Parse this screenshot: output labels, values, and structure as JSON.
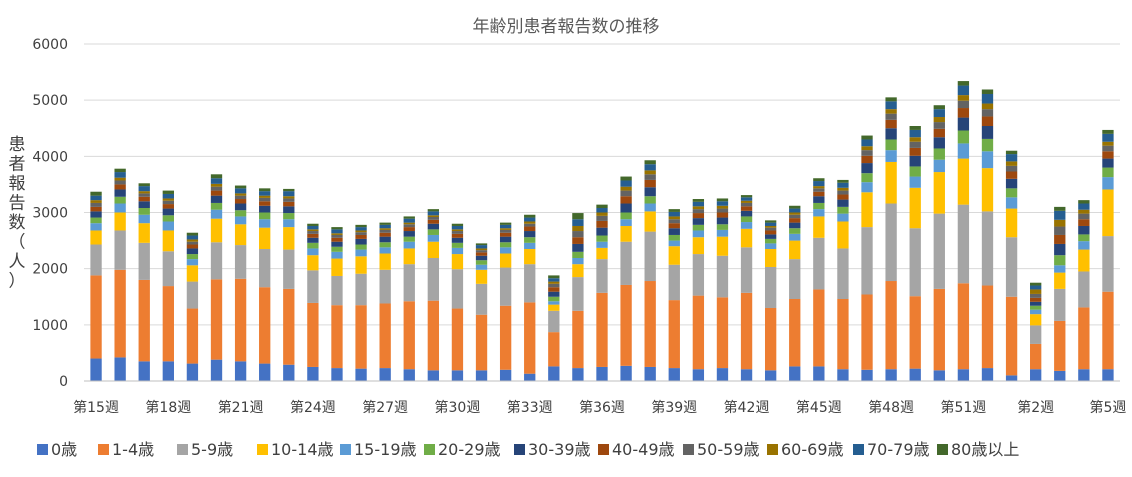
{
  "chart_data": {
    "type": "bar",
    "stacked": true,
    "title": "年齢別患者報告数の推移",
    "ylabel": "患者報告数（人）",
    "xlabel": "",
    "ylim": [
      0,
      6000
    ],
    "yticks": [
      0,
      1000,
      2000,
      3000,
      4000,
      5000,
      6000
    ],
    "grid": true,
    "legend_position": "bottom",
    "categories": [
      "第15週",
      "第16週",
      "第17週",
      "第18週",
      "第19週",
      "第20週",
      "第21週",
      "第22週",
      "第23週",
      "第24週",
      "第25週",
      "第26週",
      "第27週",
      "第28週",
      "第29週",
      "第30週",
      "第31週",
      "第32週",
      "第33週",
      "第34週",
      "第35週",
      "第36週",
      "第37週",
      "第38週",
      "第39週",
      "第40週",
      "第41週",
      "第42週",
      "第43週",
      "第44週",
      "第45週",
      "第46週",
      "第47週",
      "第48週",
      "第49週",
      "第50週",
      "第51週",
      "第52週",
      "第1週",
      "第2週",
      "第3週",
      "第4週",
      "第5週"
    ],
    "shown_tick_labels": [
      "第15週",
      "第18週",
      "第21週",
      "第24週",
      "第27週",
      "第30週",
      "第33週",
      "第36週",
      "第39週",
      "第42週",
      "第45週",
      "第48週",
      "第51週",
      "第2週",
      "第5週"
    ],
    "series": [
      {
        "name": "0歳",
        "color": "#4472c4",
        "values": [
          400,
          420,
          350,
          350,
          310,
          380,
          350,
          310,
          290,
          250,
          230,
          220,
          230,
          210,
          190,
          190,
          190,
          200,
          130,
          260,
          230,
          250,
          270,
          250,
          230,
          210,
          230,
          210,
          190,
          260,
          260,
          210,
          200,
          210,
          220,
          190,
          210,
          230,
          100,
          210,
          180,
          210,
          210
        ]
      },
      {
        "name": "1-4歳",
        "color": "#ed7d31",
        "values": [
          1480,
          1560,
          1450,
          1340,
          980,
          1430,
          1470,
          1360,
          1350,
          1140,
          1120,
          1130,
          1150,
          1210,
          1240,
          1100,
          990,
          1140,
          1270,
          610,
          1020,
          1320,
          1440,
          1530,
          1210,
          1310,
          1260,
          1360,
          1110,
          1200,
          1370,
          1250,
          1340,
          1570,
          1290,
          1450,
          1530,
          1470,
          1400,
          450,
          890,
          1100,
          1380
        ]
      },
      {
        "name": "5-9歳",
        "color": "#a5a5a5",
        "values": [
          550,
          700,
          660,
          620,
          480,
          660,
          600,
          680,
          700,
          580,
          520,
          560,
          600,
          660,
          760,
          700,
          550,
          680,
          680,
          380,
          600,
          600,
          770,
          880,
          630,
          740,
          740,
          810,
          730,
          710,
          920,
          900,
          1200,
          1380,
          1210,
          1340,
          1400,
          1320,
          1060,
          330,
          570,
          640,
          990
        ]
      },
      {
        "name": "10-14歳",
        "color": "#ffc000",
        "values": [
          250,
          320,
          350,
          370,
          290,
          420,
          370,
          380,
          400,
          270,
          310,
          310,
          290,
          280,
          290,
          270,
          250,
          250,
          270,
          110,
          230,
          200,
          280,
          360,
          330,
          300,
          340,
          330,
          320,
          330,
          380,
          480,
          620,
          740,
          720,
          740,
          820,
          770,
          510,
          200,
          290,
          390,
          830
        ]
      },
      {
        "name": "15-19歳",
        "color": "#5b9bd5",
        "values": [
          130,
          160,
          150,
          160,
          110,
          160,
          140,
          150,
          140,
          120,
          120,
          120,
          110,
          120,
          120,
          110,
          90,
          110,
          110,
          60,
          110,
          110,
          120,
          140,
          100,
          120,
          120,
          120,
          100,
          120,
          130,
          140,
          180,
          210,
          200,
          220,
          270,
          300,
          200,
          80,
          130,
          150,
          220
        ]
      },
      {
        "name": "20-29歳",
        "color": "#70ad47",
        "values": [
          100,
          120,
          120,
          110,
          90,
          120,
          110,
          120,
          110,
          100,
          90,
          90,
          90,
          90,
          100,
          90,
          80,
          90,
          100,
          80,
          110,
          110,
          120,
          130,
          100,
          100,
          100,
          100,
          80,
          100,
          110,
          120,
          160,
          190,
          180,
          200,
          230,
          220,
          160,
          70,
          180,
          120,
          170
        ]
      },
      {
        "name": "30-39歳",
        "color": "#264478",
        "values": [
          110,
          130,
          120,
          120,
          100,
          130,
          120,
          120,
          120,
          90,
          90,
          100,
          100,
          100,
          100,
          90,
          80,
          100,
          110,
          90,
          140,
          140,
          160,
          160,
          120,
          120,
          120,
          100,
          80,
          100,
          120,
          130,
          180,
          200,
          190,
          200,
          230,
          230,
          170,
          70,
          200,
          150,
          160
        ]
      },
      {
        "name": "40-49歳",
        "color": "#9e480e",
        "values": [
          80,
          90,
          80,
          80,
          70,
          90,
          80,
          80,
          80,
          70,
          70,
          70,
          70,
          70,
          70,
          70,
          60,
          70,
          80,
          80,
          120,
          120,
          130,
          130,
          90,
          90,
          90,
          80,
          70,
          80,
          80,
          90,
          130,
          150,
          140,
          150,
          170,
          170,
          130,
          70,
          160,
          120,
          130
        ]
      },
      {
        "name": "50-59歳",
        "color": "#636363",
        "values": [
          70,
          70,
          60,
          60,
          50,
          70,
          60,
          60,
          60,
          50,
          50,
          50,
          50,
          50,
          50,
          50,
          40,
          50,
          50,
          60,
          110,
          90,
          100,
          100,
          70,
          70,
          70,
          60,
          50,
          60,
          60,
          70,
          100,
          110,
          110,
          120,
          130,
          130,
          100,
          70,
          150,
          100,
          100
        ]
      },
      {
        "name": "60-69歳",
        "color": "#997300",
        "values": [
          50,
          50,
          40,
          40,
          40,
          50,
          40,
          40,
          40,
          30,
          30,
          30,
          30,
          30,
          30,
          30,
          30,
          30,
          40,
          40,
          90,
          60,
          70,
          70,
          50,
          50,
          50,
          40,
          30,
          40,
          40,
          50,
          70,
          80,
          80,
          90,
          100,
          100,
          80,
          80,
          120,
          70,
          70
        ]
      },
      {
        "name": "70-79歳",
        "color": "#255e91",
        "values": [
          80,
          100,
          90,
          80,
          70,
          100,
          90,
          80,
          90,
          60,
          70,
          60,
          60,
          70,
          70,
          60,
          60,
          60,
          70,
          60,
          120,
          80,
          110,
          110,
          80,
          80,
          80,
          60,
          60,
          70,
          90,
          90,
          120,
          140,
          130,
          140,
          170,
          170,
          130,
          70,
          160,
          110,
          140
        ]
      },
      {
        "name": "80歳以上",
        "color": "#43682b",
        "values": [
          70,
          60,
          50,
          60,
          50,
          70,
          50,
          50,
          40,
          40,
          40,
          40,
          40,
          40,
          40,
          40,
          30,
          40,
          50,
          50,
          110,
          60,
          70,
          70,
          50,
          50,
          50,
          40,
          40,
          50,
          50,
          50,
          70,
          70,
          70,
          70,
          80,
          80,
          60,
          50,
          70,
          60,
          70
        ]
      }
    ]
  }
}
